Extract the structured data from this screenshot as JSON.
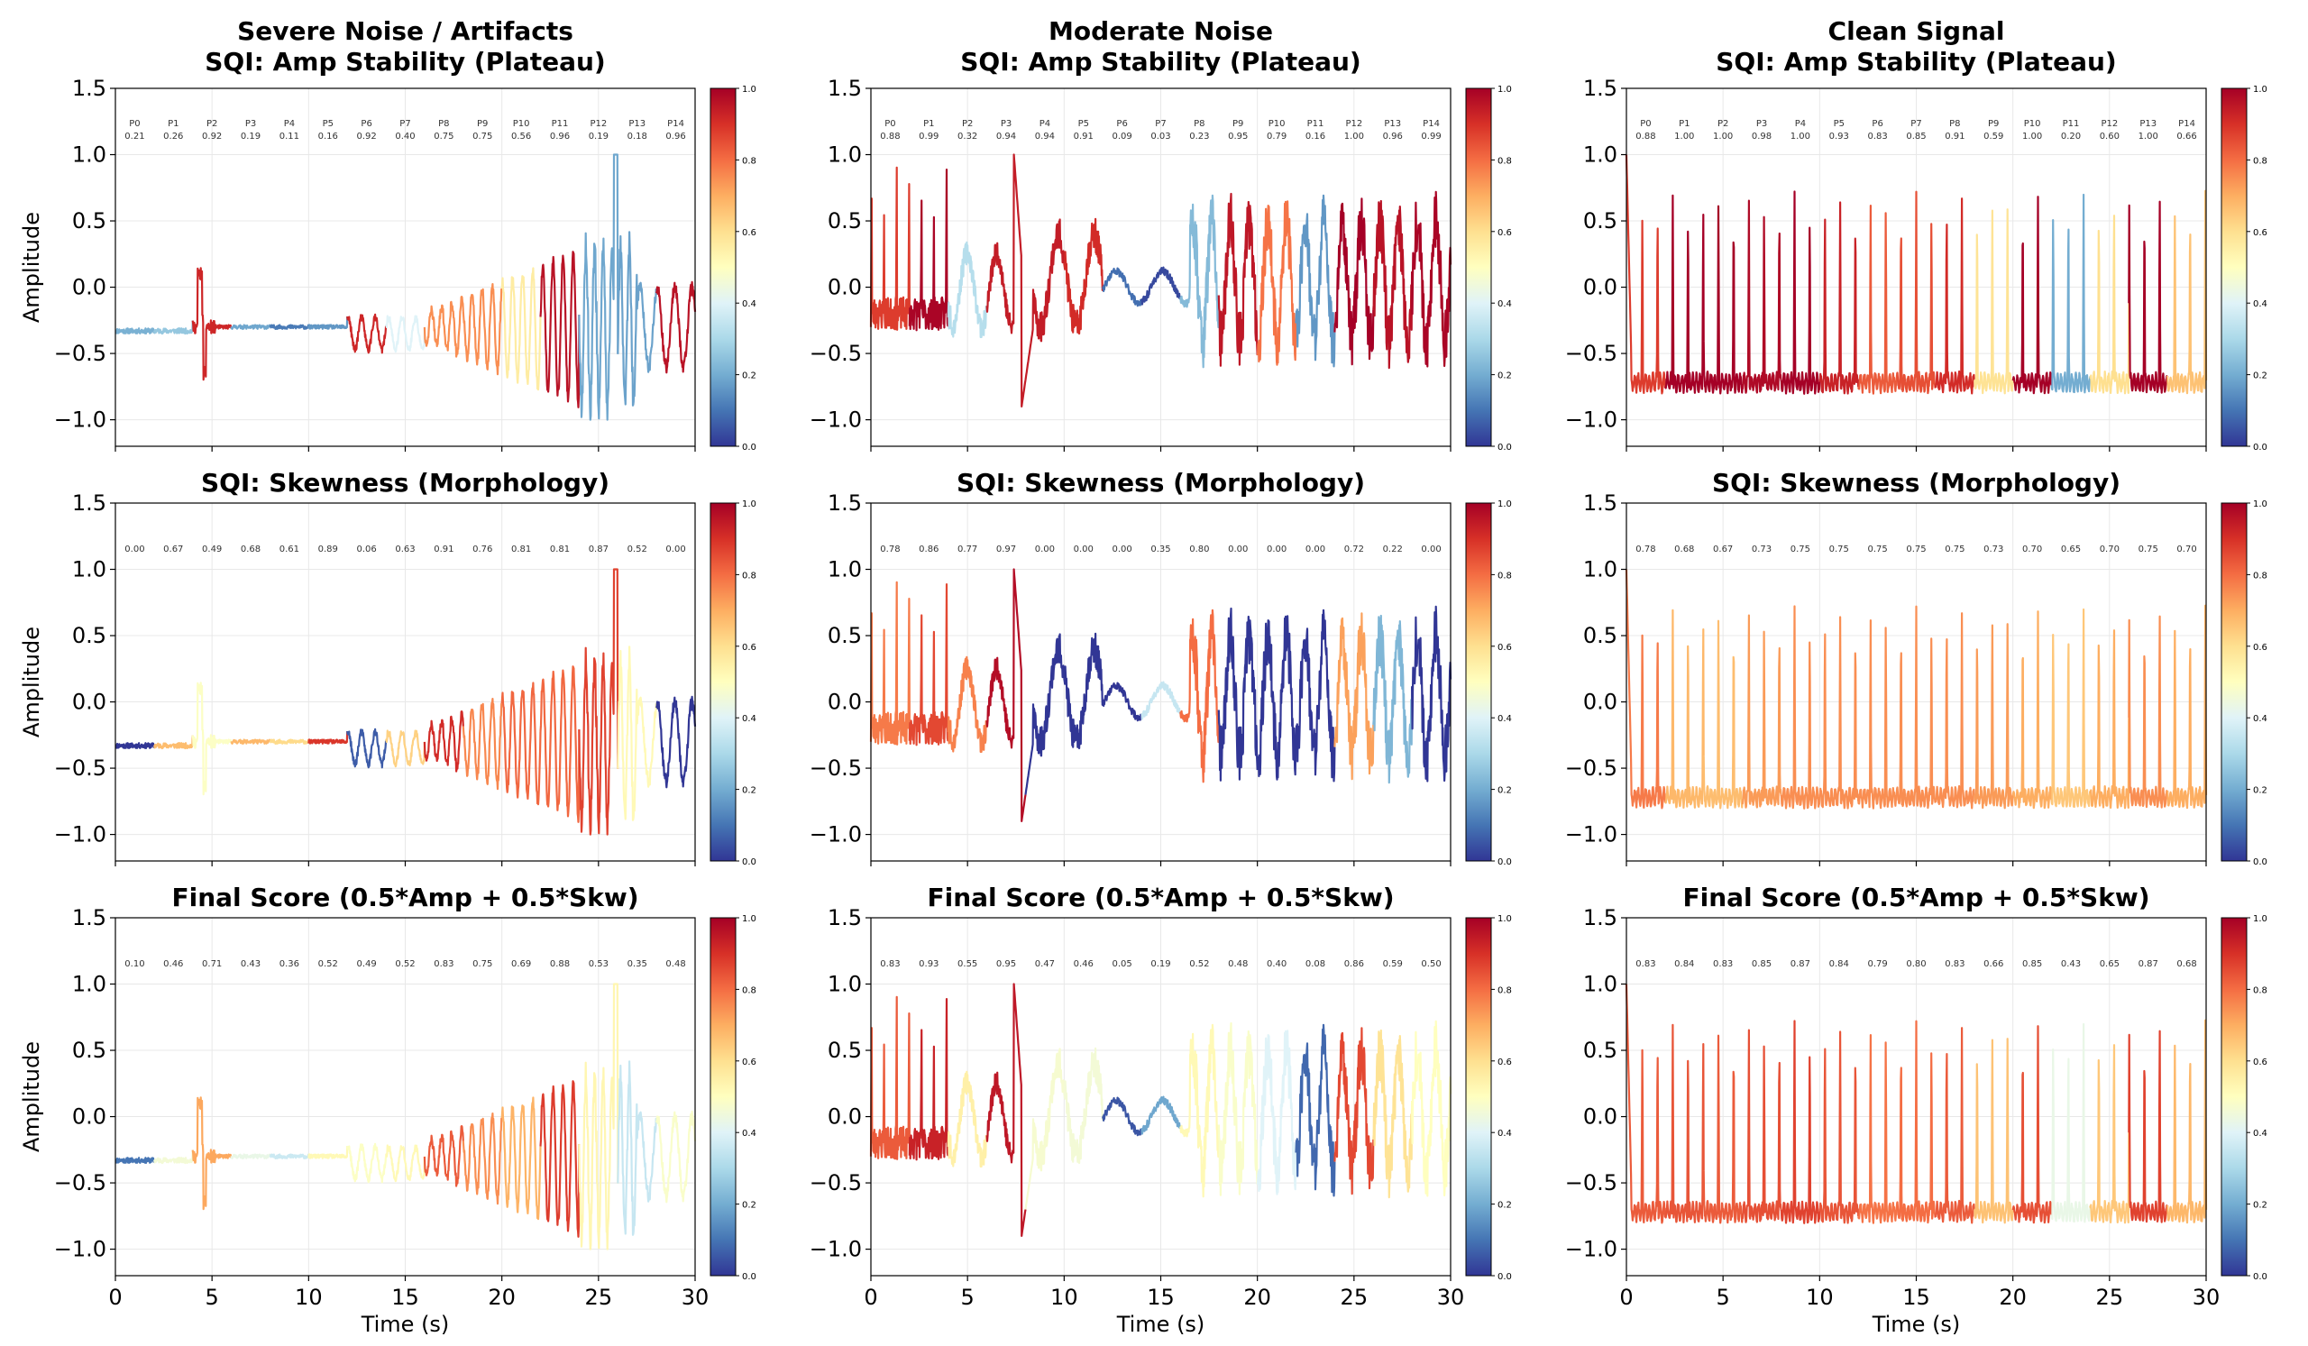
{
  "figure": {
    "ylabel": "Amplitude",
    "xlabel": "Time (s)",
    "colormap": [
      "#313695",
      "#4575b4",
      "#74add1",
      "#abd9e9",
      "#e0f3f8",
      "#ffffbf",
      "#fee090",
      "#fdae61",
      "#f46d43",
      "#d73027",
      "#a50026"
    ],
    "columns": [
      {
        "header": "Severe Noise / Artifacts",
        "seed": 11,
        "noise": "severe"
      },
      {
        "header": "Moderate Noise",
        "seed": 23,
        "noise": "moderate"
      },
      {
        "header": "Clean Signal",
        "seed": 37,
        "noise": "clean"
      }
    ],
    "rows": [
      {
        "title": "SQI: Amp Stability (Plateau)",
        "key": "amp",
        "show_segment_names": true
      },
      {
        "title": "SQI: Skewness (Morphology)",
        "key": "skw",
        "show_segment_names": false
      },
      {
        "title": "Final Score (0.5*Amp + 0.5*Skw)",
        "key": "final",
        "show_segment_names": false
      }
    ],
    "segment_names": [
      "P0",
      "P1",
      "P2",
      "P3",
      "P4",
      "P5",
      "P6",
      "P7",
      "P8",
      "P9",
      "P10",
      "P11",
      "P12",
      "P13",
      "P14"
    ],
    "colorbar_ticks": [
      "0.0",
      "0.2",
      "0.4",
      "0.6",
      "0.8",
      "1.0"
    ]
  },
  "chart_data": [
    {
      "type": "line",
      "panel": "Severe Noise / Artifacts - Amp",
      "title": "Severe Noise / Artifacts\nSQI: Amp Stability (Plateau)",
      "xlabel": "",
      "ylabel": "Amplitude",
      "xlim": [
        0,
        30
      ],
      "ylim": [
        -1.2,
        1.5
      ],
      "x_ticks": [
        "0",
        "5",
        "10",
        "15",
        "20",
        "25",
        "30"
      ],
      "y_ticks": [
        "−1.0",
        "−0.5",
        "0.0",
        "0.5",
        "1.0",
        "1.5"
      ],
      "segments": [
        "P0",
        "P1",
        "P2",
        "P3",
        "P4",
        "P5",
        "P6",
        "P7",
        "P8",
        "P9",
        "P10",
        "P11",
        "P12",
        "P13",
        "P14"
      ],
      "scores": [
        0.21,
        0.26,
        0.92,
        0.19,
        0.11,
        0.16,
        0.92,
        0.4,
        0.75,
        0.75,
        0.56,
        0.96,
        0.19,
        0.18,
        0.96
      ],
      "score_labels": [
        "0.21",
        "0.26",
        "0.92",
        "0.19",
        "0.11",
        "0.16",
        "0.92",
        "0.40",
        "0.75",
        "0.75",
        "0.56",
        "0.96",
        "0.19",
        "0.18",
        "0.96"
      ],
      "colorbar_range": [
        0,
        1
      ]
    },
    {
      "type": "line",
      "panel": "Moderate Noise - Amp",
      "title": "Moderate Noise\nSQI: Amp Stability (Plateau)",
      "xlabel": "",
      "ylabel": "",
      "xlim": [
        0,
        30
      ],
      "ylim": [
        -1.2,
        1.5
      ],
      "segments": [
        "P0",
        "P1",
        "P2",
        "P3",
        "P4",
        "P5",
        "P6",
        "P7",
        "P8",
        "P9",
        "P10",
        "P11",
        "P12",
        "P13",
        "P14"
      ],
      "scores": [
        0.88,
        0.99,
        0.32,
        0.94,
        0.94,
        0.91,
        0.09,
        0.03,
        0.23,
        0.95,
        0.79,
        0.16,
        1.0,
        0.96,
        0.99
      ],
      "score_labels": [
        "0.88",
        "0.99",
        "0.32",
        "0.94",
        "0.94",
        "0.91",
        "0.09",
        "0.03",
        "0.23",
        "0.95",
        "0.79",
        "0.16",
        "1.00",
        "0.96",
        "0.99"
      ],
      "colorbar_range": [
        0,
        1
      ]
    },
    {
      "type": "line",
      "panel": "Clean Signal - Amp",
      "title": "Clean Signal\nSQI: Amp Stability (Plateau)",
      "xlabel": "",
      "ylabel": "",
      "xlim": [
        0,
        30
      ],
      "ylim": [
        -1.2,
        1.5
      ],
      "segments": [
        "P0",
        "P1",
        "P2",
        "P3",
        "P4",
        "P5",
        "P6",
        "P7",
        "P8",
        "P9",
        "P10",
        "P11",
        "P12",
        "P13",
        "P14"
      ],
      "scores": [
        0.88,
        1.0,
        1.0,
        0.98,
        1.0,
        0.93,
        0.83,
        0.85,
        0.91,
        0.59,
        1.0,
        0.2,
        0.6,
        1.0,
        0.66
      ],
      "score_labels": [
        "0.88",
        "1.00",
        "1.00",
        "0.98",
        "1.00",
        "0.93",
        "0.83",
        "0.85",
        "0.91",
        "0.59",
        "1.00",
        "0.20",
        "0.60",
        "1.00",
        "0.66"
      ],
      "colorbar_range": [
        0,
        1
      ]
    },
    {
      "type": "line",
      "panel": "Severe Noise / Artifacts - Skew",
      "title": "SQI: Skewness (Morphology)",
      "xlabel": "",
      "ylabel": "Amplitude",
      "xlim": [
        0,
        30
      ],
      "ylim": [
        -1.2,
        1.5
      ],
      "scores": [
        0.0,
        0.67,
        0.49,
        0.68,
        0.61,
        0.89,
        0.06,
        0.63,
        0.91,
        0.76,
        0.81,
        0.81,
        0.87,
        0.52,
        0.0
      ],
      "score_labels": [
        "0.00",
        "0.67",
        "0.49",
        "0.68",
        "0.61",
        "0.89",
        "0.06",
        "0.63",
        "0.91",
        "0.76",
        "0.81",
        "0.81",
        "0.87",
        "0.52",
        "0.00"
      ],
      "colorbar_range": [
        0,
        1
      ]
    },
    {
      "type": "line",
      "panel": "Moderate Noise - Skew",
      "title": "SQI: Skewness (Morphology)",
      "xlabel": "",
      "ylabel": "",
      "xlim": [
        0,
        30
      ],
      "ylim": [
        -1.2,
        1.5
      ],
      "scores": [
        0.78,
        0.86,
        0.77,
        0.97,
        0.0,
        0.0,
        0.0,
        0.35,
        0.8,
        0.0,
        0.0,
        0.0,
        0.72,
        0.22,
        0.0
      ],
      "score_labels": [
        "0.78",
        "0.86",
        "0.77",
        "0.97",
        "0.00",
        "0.00",
        "0.00",
        "0.35",
        "0.80",
        "0.00",
        "0.00",
        "0.00",
        "0.72",
        "0.22",
        "0.00"
      ],
      "colorbar_range": [
        0,
        1
      ]
    },
    {
      "type": "line",
      "panel": "Clean Signal - Skew",
      "title": "SQI: Skewness (Morphology)",
      "xlabel": "",
      "ylabel": "",
      "xlim": [
        0,
        30
      ],
      "ylim": [
        -1.2,
        1.5
      ],
      "scores": [
        0.78,
        0.68,
        0.67,
        0.73,
        0.75,
        0.75,
        0.75,
        0.75,
        0.75,
        0.73,
        0.7,
        0.65,
        0.7,
        0.75,
        0.7
      ],
      "score_labels": [
        "0.78",
        "0.68",
        "0.67",
        "0.73",
        "0.75",
        "0.75",
        "0.75",
        "0.75",
        "0.75",
        "0.73",
        "0.70",
        "0.65",
        "0.70",
        "0.75",
        "0.70"
      ],
      "colorbar_range": [
        0,
        1
      ]
    },
    {
      "type": "line",
      "panel": "Severe Noise / Artifacts - Final",
      "title": "Final Score (0.5*Amp + 0.5*Skw)",
      "xlabel": "Time (s)",
      "ylabel": "Amplitude",
      "xlim": [
        0,
        30
      ],
      "ylim": [
        -1.2,
        1.5
      ],
      "scores": [
        0.1,
        0.46,
        0.71,
        0.43,
        0.36,
        0.52,
        0.49,
        0.52,
        0.83,
        0.75,
        0.69,
        0.88,
        0.53,
        0.35,
        0.48
      ],
      "score_labels": [
        "0.10",
        "0.46",
        "0.71",
        "0.43",
        "0.36",
        "0.52",
        "0.49",
        "0.52",
        "0.83",
        "0.75",
        "0.69",
        "0.88",
        "0.53",
        "0.35",
        "0.48"
      ],
      "colorbar_range": [
        0,
        1
      ]
    },
    {
      "type": "line",
      "panel": "Moderate Noise - Final",
      "title": "Final Score (0.5*Amp + 0.5*Skw)",
      "xlabel": "Time (s)",
      "ylabel": "",
      "xlim": [
        0,
        30
      ],
      "ylim": [
        -1.2,
        1.5
      ],
      "scores": [
        0.83,
        0.93,
        0.55,
        0.95,
        0.47,
        0.46,
        0.05,
        0.19,
        0.52,
        0.48,
        0.4,
        0.08,
        0.86,
        0.59,
        0.5
      ],
      "score_labels": [
        "0.83",
        "0.93",
        "0.55",
        "0.95",
        "0.47",
        "0.46",
        "0.05",
        "0.19",
        "0.52",
        "0.48",
        "0.40",
        "0.08",
        "0.86",
        "0.59",
        "0.50"
      ],
      "colorbar_range": [
        0,
        1
      ]
    },
    {
      "type": "line",
      "panel": "Clean Signal - Final",
      "title": "Final Score (0.5*Amp + 0.5*Skw)",
      "xlabel": "Time (s)",
      "ylabel": "",
      "xlim": [
        0,
        30
      ],
      "ylim": [
        -1.2,
        1.5
      ],
      "scores": [
        0.83,
        0.84,
        0.83,
        0.85,
        0.87,
        0.84,
        0.79,
        0.8,
        0.83,
        0.66,
        0.85,
        0.43,
        0.65,
        0.87,
        0.68
      ],
      "score_labels": [
        "0.83",
        "0.84",
        "0.83",
        "0.85",
        "0.87",
        "0.84",
        "0.79",
        "0.80",
        "0.83",
        "0.66",
        "0.85",
        "0.43",
        "0.65",
        "0.87",
        "0.68"
      ],
      "colorbar_range": [
        0,
        1
      ]
    }
  ]
}
